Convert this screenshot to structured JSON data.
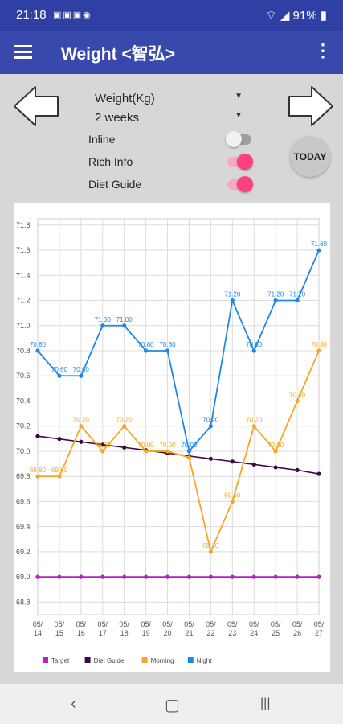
{
  "status": {
    "time": "21:18",
    "battery": "91%"
  },
  "appbar": {
    "title": "Weight <智弘>"
  },
  "controls": {
    "metric": "Weight(Kg)",
    "period": "2 weeks",
    "inline_label": "Inline",
    "inline_on": false,
    "rich_label": "Rich Info",
    "rich_on": true,
    "diet_label": "Diet Guide",
    "diet_on": true,
    "today_label": "TODAY",
    "switch_on_color": "#ff4081",
    "switch_on_track": "#f8a9c4",
    "switch_off_color": "#f1f1f1",
    "switch_off_track": "#9e9e9e"
  },
  "chart_data": {
    "type": "line",
    "categories": [
      "05/14",
      "05/15",
      "05/16",
      "05/17",
      "05/18",
      "05/19",
      "05/20",
      "05/21",
      "05/22",
      "05/23",
      "05/24",
      "05/25",
      "05/26",
      "05/27"
    ],
    "ylim": [
      68.7,
      71.85
    ],
    "yticks": [
      "68.8",
      "69.0",
      "69.2",
      "69.4",
      "69.6",
      "69.8",
      "70.0",
      "70.2",
      "70.4",
      "70.6",
      "70.8",
      "71.0",
      "71.2",
      "71.4",
      "71.6",
      "71.8"
    ],
    "grid": true,
    "legend_position": "bottom",
    "series": [
      {
        "name": "Target",
        "color": "#b620c0",
        "values": [
          69.0,
          69.0,
          69.0,
          69.0,
          69.0,
          69.0,
          69.0,
          69.0,
          69.0,
          69.0,
          69.0,
          69.0,
          69.0,
          69.0
        ],
        "labels": []
      },
      {
        "name": "Diet Guide",
        "color": "#3b0a45",
        "values": [
          70.12,
          70.098,
          70.075,
          70.052,
          70.03,
          70.008,
          69.985,
          69.962,
          69.94,
          69.918,
          69.895,
          69.872,
          69.85,
          69.82
        ],
        "labels": []
      },
      {
        "name": "Morning",
        "color": "#f6a623",
        "values": [
          69.8,
          69.8,
          70.2,
          70.0,
          70.2,
          70.0,
          70.0,
          69.95,
          69.2,
          69.6,
          70.2,
          70.0,
          70.4,
          70.8
        ],
        "labels": [
          "69.80",
          "69.80",
          "70.20",
          "70.00",
          "70.20",
          "70.00",
          "70.00",
          "",
          "69.20",
          "69.60",
          "70.20",
          "70.00",
          "70.40",
          "70.80"
        ]
      },
      {
        "name": "Night",
        "color": "#1e88e5",
        "values": [
          70.8,
          70.6,
          70.6,
          71.0,
          71.0,
          70.8,
          70.8,
          70.0,
          70.2,
          71.2,
          70.8,
          71.2,
          71.2,
          71.6
        ],
        "labels": [
          "70.80",
          "70.60",
          "70.60",
          "71.00",
          "71.00",
          "70.80",
          "70.80",
          "70.00",
          "70.20",
          "71.20",
          "70.80",
          "71.20",
          "71.20",
          "71.60"
        ]
      }
    ]
  }
}
